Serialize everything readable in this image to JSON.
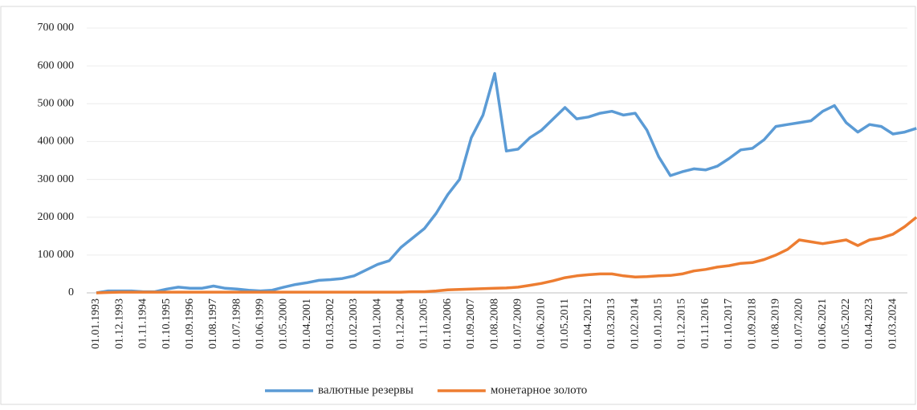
{
  "chart_data": {
    "type": "line",
    "categories": [
      "01.01.1993",
      null,
      "01.12.1993",
      null,
      "01.11.1994",
      null,
      "01.10.1995",
      null,
      "01.09.1996",
      null,
      "01.08.1997",
      null,
      "01.07.1998",
      null,
      "01.06.1999",
      null,
      "01.05.2000",
      null,
      "01.04.2001",
      null,
      "01.03.2002",
      null,
      "01.02.2003",
      null,
      "01.01.2004",
      null,
      "01.12.2004",
      null,
      "01.11.2005",
      null,
      "01.10.2006",
      null,
      "01.09.2007",
      null,
      "01.08.2008",
      null,
      "01.07.2009",
      null,
      "01.06.2010",
      null,
      "01.05.2011",
      null,
      "01.04.2012",
      null,
      "01.03.2013",
      null,
      "01.02.2014",
      null,
      "01.01.2015",
      null,
      "01.12.2015",
      null,
      "01.11.2016",
      null,
      "01.10.2017",
      null,
      "01.09.2018",
      null,
      "01.08.2019",
      null,
      "01.07.2020",
      null,
      "01.06.2021",
      null,
      "01.05.2022",
      null,
      "01.04.2023",
      null,
      "01.03.2024",
      null,
      null
    ],
    "series": [
      {
        "name": "валютные резервы",
        "color": "#5b9bd5",
        "values": [
          0,
          5000,
          5000,
          5000,
          3000,
          3000,
          10000,
          15000,
          12000,
          12000,
          18000,
          12000,
          10000,
          7000,
          5000,
          7000,
          15000,
          22000,
          27000,
          33000,
          35000,
          38000,
          45000,
          60000,
          75000,
          85000,
          120000,
          145000,
          170000,
          210000,
          260000,
          300000,
          410000,
          470000,
          580000,
          375000,
          380000,
          410000,
          430000,
          460000,
          490000,
          460000,
          465000,
          475000,
          480000,
          470000,
          475000,
          430000,
          360000,
          310000,
          320000,
          328000,
          325000,
          335000,
          355000,
          378000,
          382000,
          405000,
          440000,
          445000,
          450000,
          455000,
          480000,
          495000,
          450000,
          425000,
          445000,
          440000,
          420000,
          425000,
          435000
        ]
      },
      {
        "name": "монетарное золото",
        "color": "#ed7d31",
        "values": [
          0,
          1000,
          2000,
          2000,
          2000,
          2000,
          2000,
          2000,
          2000,
          2000,
          2000,
          2000,
          2000,
          2000,
          2000,
          2000,
          2000,
          2000,
          2000,
          2000,
          2000,
          2000,
          2000,
          2000,
          2000,
          2000,
          2000,
          3000,
          3000,
          5000,
          8000,
          9000,
          10000,
          11000,
          12000,
          13000,
          15000,
          20000,
          25000,
          32000,
          40000,
          45000,
          48000,
          50000,
          50000,
          45000,
          42000,
          43000,
          45000,
          46000,
          50000,
          58000,
          62000,
          68000,
          72000,
          78000,
          80000,
          88000,
          100000,
          115000,
          140000,
          135000,
          130000,
          135000,
          140000,
          125000,
          140000,
          145000,
          155000,
          175000,
          200000
        ]
      }
    ],
    "ylim": [
      0,
      700000
    ],
    "yticks": [
      0,
      {
        "value": 100000,
        "label": "100 000"
      },
      {
        "value": 200000,
        "label": "200 000"
      },
      {
        "value": 300000,
        "label": "300 000"
      },
      {
        "value": 400000,
        "label": "400 000"
      },
      {
        "value": 500000,
        "label": "500 000"
      },
      {
        "value": 600000,
        "label": "600 000"
      },
      {
        "value": 700000,
        "label": "700 000"
      }
    ],
    "grid": true,
    "legend": "bottom"
  }
}
